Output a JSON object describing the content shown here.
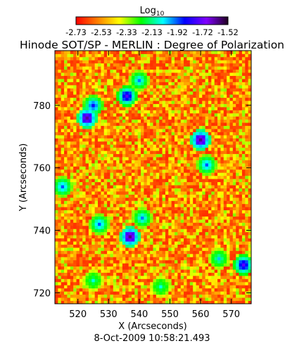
{
  "chart_data": {
    "type": "heatmap",
    "title": "Hinode SOT/SP - MERLIN : Degree of Polarization",
    "colorbar": {
      "label": "Log",
      "label_subscript": "10",
      "tick_labels": [
        "-2.73",
        "-2.53",
        "-2.33",
        "-2.13",
        "-1.92",
        "-1.72",
        "-1.52"
      ],
      "range": [
        -2.73,
        -1.52
      ],
      "colormap": [
        "#ff0000",
        "#ff8000",
        "#ffff00",
        "#00ff00",
        "#00ffff",
        "#0000ff",
        "#8000ff",
        "#200020"
      ]
    },
    "xlabel": "X (Arcseconds)",
    "ylabel": "Y (Arcseconds)",
    "xlim": [
      512.5,
      576.5
    ],
    "ylim": [
      716.5,
      797.5
    ],
    "x_ticks": [
      520,
      530,
      540,
      550,
      560,
      570
    ],
    "y_ticks": [
      720,
      740,
      760,
      780
    ],
    "x_tick_labels": [
      "520",
      "530",
      "540",
      "550",
      "560",
      "570"
    ],
    "y_tick_labels": [
      "720",
      "740",
      "760",
      "780"
    ],
    "grid": false,
    "typical_value_range": [
      -2.73,
      -2.3
    ],
    "features": [
      {
        "x": 523,
        "y": 776,
        "level": -1.62
      },
      {
        "x": 525,
        "y": 780,
        "level": -1.85
      },
      {
        "x": 536,
        "y": 783,
        "level": -1.75
      },
      {
        "x": 540,
        "y": 788,
        "level": -1.95
      },
      {
        "x": 560,
        "y": 769,
        "level": -1.6
      },
      {
        "x": 562,
        "y": 761,
        "level": -1.92
      },
      {
        "x": 537,
        "y": 738,
        "level": -1.6
      },
      {
        "x": 527,
        "y": 742,
        "level": -1.92
      },
      {
        "x": 515,
        "y": 754,
        "level": -1.92
      },
      {
        "x": 541,
        "y": 744,
        "level": -1.95
      },
      {
        "x": 574,
        "y": 729,
        "level": -1.75
      },
      {
        "x": 566,
        "y": 731,
        "level": -2.0
      },
      {
        "x": 547,
        "y": 722,
        "level": -2.05
      },
      {
        "x": 525,
        "y": 724,
        "level": -2.05
      }
    ]
  },
  "footer": {
    "date": "8-Oct-2009 10:58:21.493"
  }
}
